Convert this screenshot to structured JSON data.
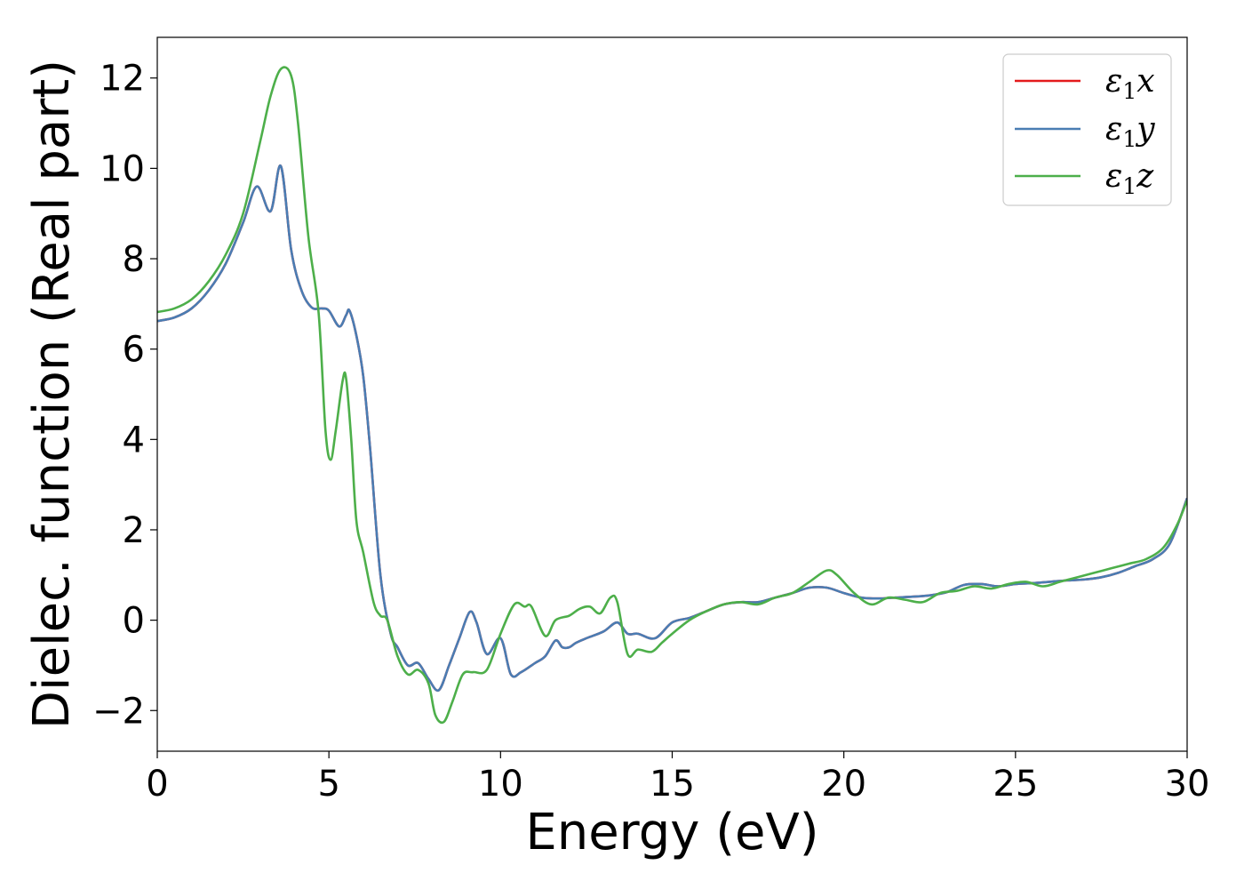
{
  "chart_data": {
    "type": "line",
    "xlabel": "Energy (eV)",
    "ylabel": "Dielec. function (Real part)",
    "xlim": [
      0,
      30
    ],
    "ylim": [
      -2.9,
      12.9
    ],
    "xticks": [
      0,
      5,
      10,
      15,
      20,
      25,
      30
    ],
    "yticks": [
      -2,
      0,
      2,
      4,
      6,
      8,
      10,
      12
    ],
    "xtick_labels": [
      "0",
      "5",
      "10",
      "15",
      "20",
      "25",
      "30"
    ],
    "ytick_labels": [
      "−2",
      "0",
      "2",
      "4",
      "6",
      "8",
      "10",
      "12"
    ],
    "grid": false,
    "legend_position": "top-right",
    "series": [
      {
        "name_main": "ε",
        "name_sub": "1",
        "name_axis": "x",
        "color": "#e41a1c",
        "x": [
          0,
          0.5,
          1,
          1.5,
          2,
          2.5,
          2.9,
          3.3,
          3.6,
          3.9,
          4.2,
          4.5,
          4.8,
          5.0,
          5.3,
          5.5,
          5.6,
          5.8,
          6.0,
          6.2,
          6.5,
          6.8,
          7.0,
          7.3,
          7.6,
          7.9,
          8.2,
          8.5,
          8.8,
          9.1,
          9.3,
          9.6,
          10.0,
          10.3,
          10.6,
          11.0,
          11.3,
          11.6,
          11.8,
          12.0,
          12.2,
          12.5,
          13.0,
          13.4,
          13.7,
          14.0,
          14.5,
          15.0,
          15.5,
          16.0,
          16.5,
          17.0,
          17.5,
          18.0,
          18.5,
          19.0,
          19.5,
          20.0,
          20.5,
          21.0,
          21.5,
          22.0,
          22.5,
          23.0,
          23.5,
          24.0,
          24.5,
          25.0,
          25.5,
          26.0,
          26.5,
          27.0,
          27.5,
          28.0,
          28.5,
          29.0,
          29.5,
          30.0
        ],
        "y": [
          6.62,
          6.7,
          6.9,
          7.3,
          7.9,
          8.8,
          9.6,
          9.05,
          10.05,
          8.2,
          7.3,
          6.92,
          6.9,
          6.85,
          6.5,
          6.75,
          6.85,
          6.3,
          5.4,
          3.8,
          1.0,
          -0.3,
          -0.6,
          -1.0,
          -0.95,
          -1.3,
          -1.55,
          -1.0,
          -0.4,
          0.18,
          -0.05,
          -0.75,
          -0.4,
          -1.2,
          -1.15,
          -0.95,
          -0.8,
          -0.45,
          -0.6,
          -0.6,
          -0.5,
          -0.4,
          -0.25,
          -0.05,
          -0.3,
          -0.3,
          -0.4,
          -0.05,
          0.05,
          0.2,
          0.35,
          0.4,
          0.4,
          0.5,
          0.6,
          0.72,
          0.72,
          0.6,
          0.5,
          0.48,
          0.5,
          0.52,
          0.55,
          0.62,
          0.78,
          0.8,
          0.75,
          0.8,
          0.82,
          0.85,
          0.88,
          0.9,
          0.95,
          1.05,
          1.2,
          1.35,
          1.7,
          2.7
        ]
      },
      {
        "name_main": "ε",
        "name_sub": "1",
        "name_axis": "y",
        "color": "#4a7db3",
        "x": [
          0,
          0.5,
          1,
          1.5,
          2,
          2.5,
          2.9,
          3.3,
          3.6,
          3.9,
          4.2,
          4.5,
          4.8,
          5.0,
          5.3,
          5.5,
          5.6,
          5.8,
          6.0,
          6.2,
          6.5,
          6.8,
          7.0,
          7.3,
          7.6,
          7.9,
          8.2,
          8.5,
          8.8,
          9.1,
          9.3,
          9.6,
          10.0,
          10.3,
          10.6,
          11.0,
          11.3,
          11.6,
          11.8,
          12.0,
          12.2,
          12.5,
          13.0,
          13.4,
          13.7,
          14.0,
          14.5,
          15.0,
          15.5,
          16.0,
          16.5,
          17.0,
          17.5,
          18.0,
          18.5,
          19.0,
          19.5,
          20.0,
          20.5,
          21.0,
          21.5,
          22.0,
          22.5,
          23.0,
          23.5,
          24.0,
          24.5,
          25.0,
          25.5,
          26.0,
          26.5,
          27.0,
          27.5,
          28.0,
          28.5,
          29.0,
          29.5,
          30.0
        ],
        "y": [
          6.62,
          6.7,
          6.9,
          7.3,
          7.9,
          8.8,
          9.6,
          9.05,
          10.05,
          8.2,
          7.3,
          6.92,
          6.9,
          6.85,
          6.5,
          6.75,
          6.85,
          6.3,
          5.4,
          3.8,
          1.0,
          -0.3,
          -0.6,
          -1.0,
          -0.95,
          -1.3,
          -1.55,
          -1.0,
          -0.4,
          0.18,
          -0.05,
          -0.75,
          -0.4,
          -1.2,
          -1.15,
          -0.95,
          -0.8,
          -0.45,
          -0.6,
          -0.6,
          -0.5,
          -0.4,
          -0.25,
          -0.05,
          -0.3,
          -0.3,
          -0.4,
          -0.05,
          0.05,
          0.2,
          0.35,
          0.4,
          0.4,
          0.5,
          0.6,
          0.72,
          0.72,
          0.6,
          0.5,
          0.48,
          0.5,
          0.52,
          0.55,
          0.62,
          0.78,
          0.8,
          0.75,
          0.8,
          0.82,
          0.85,
          0.88,
          0.9,
          0.95,
          1.05,
          1.2,
          1.35,
          1.7,
          2.7
        ]
      },
      {
        "name_main": "ε",
        "name_sub": "1",
        "name_axis": "z",
        "color": "#4daf4a",
        "x": [
          0,
          0.5,
          1,
          1.5,
          2,
          2.5,
          3.0,
          3.3,
          3.6,
          3.9,
          4.1,
          4.4,
          4.7,
          4.9,
          5.05,
          5.2,
          5.4,
          5.5,
          5.65,
          5.8,
          6.0,
          6.3,
          6.5,
          6.7,
          7.0,
          7.3,
          7.6,
          7.9,
          8.1,
          8.35,
          8.6,
          8.9,
          9.2,
          9.6,
          10.0,
          10.4,
          10.7,
          10.9,
          11.3,
          11.6,
          12.0,
          12.3,
          12.6,
          12.9,
          13.2,
          13.4,
          13.7,
          14.0,
          14.4,
          14.7,
          15.0,
          15.5,
          16.0,
          16.5,
          17.0,
          17.5,
          18.0,
          18.5,
          19.0,
          19.5,
          19.8,
          20.3,
          20.8,
          21.3,
          21.8,
          22.3,
          22.8,
          23.3,
          23.8,
          24.3,
          24.8,
          25.3,
          25.8,
          26.3,
          26.8,
          27.3,
          27.8,
          28.3,
          28.8,
          29.3,
          29.7,
          30.0
        ],
        "y": [
          6.82,
          6.9,
          7.1,
          7.5,
          8.1,
          9.0,
          10.6,
          11.6,
          12.2,
          12.05,
          11.0,
          8.5,
          6.8,
          4.2,
          3.55,
          4.2,
          5.3,
          5.35,
          4.0,
          2.2,
          1.5,
          0.4,
          0.1,
          0.0,
          -0.8,
          -1.2,
          -1.1,
          -1.4,
          -2.1,
          -2.25,
          -1.8,
          -1.2,
          -1.15,
          -1.1,
          -0.3,
          0.35,
          0.3,
          0.3,
          -0.35,
          0.0,
          0.1,
          0.25,
          0.3,
          0.15,
          0.5,
          0.4,
          -0.75,
          -0.65,
          -0.7,
          -0.5,
          -0.3,
          0.0,
          0.2,
          0.35,
          0.4,
          0.35,
          0.5,
          0.6,
          0.85,
          1.1,
          1.0,
          0.6,
          0.35,
          0.5,
          0.45,
          0.4,
          0.6,
          0.65,
          0.75,
          0.7,
          0.8,
          0.85,
          0.75,
          0.85,
          0.95,
          1.05,
          1.15,
          1.25,
          1.35,
          1.6,
          2.1,
          2.65
        ]
      }
    ]
  }
}
